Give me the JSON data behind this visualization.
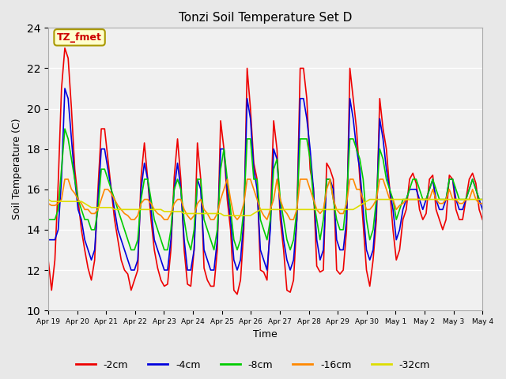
{
  "title": "Tonzi Soil Temperature Set D",
  "xlabel": "Time",
  "ylabel": "Soil Temperature (C)",
  "ylim": [
    10,
    24
  ],
  "yticks": [
    10,
    12,
    14,
    16,
    18,
    20,
    22,
    24
  ],
  "annotation_text": "TZ_fmet",
  "annotation_color": "#cc0000",
  "annotation_bg": "#ffffcc",
  "annotation_border": "#aa9900",
  "series_colors": {
    "-2cm": "#ee0000",
    "-4cm": "#0000dd",
    "-8cm": "#00cc00",
    "-16cm": "#ff8800",
    "-32cm": "#dddd00"
  },
  "x_tick_labels": [
    "Apr 19",
    "Apr 20",
    "Apr 21",
    "Apr 22",
    "Apr 23",
    "Apr 24",
    "Apr 25",
    "Apr 26",
    "Apr 27",
    "Apr 28",
    "Apr 29",
    "Apr 30",
    "May 1",
    "May 2",
    "May 3",
    "May 4"
  ],
  "bg_color": "#e8e8e8",
  "plot_bg": "#f0f0f0",
  "linewidth": 1.2,
  "t_2cm": [
    12.5,
    11.0,
    12.5,
    16.3,
    21.0,
    23.0,
    22.5,
    20.0,
    17.0,
    15.5,
    14.0,
    13.0,
    12.1,
    11.5,
    12.5,
    16.0,
    19.0,
    19.0,
    17.5,
    16.0,
    14.5,
    13.5,
    12.5,
    12.0,
    11.8,
    11.0,
    11.5,
    12.0,
    16.6,
    18.3,
    16.5,
    14.5,
    13.0,
    12.1,
    11.5,
    11.2,
    11.3,
    13.0,
    16.6,
    18.5,
    16.5,
    13.0,
    11.3,
    11.2,
    13.0,
    18.3,
    16.5,
    12.1,
    11.5,
    11.2,
    11.2,
    13.0,
    19.4,
    18.0,
    15.5,
    14.0,
    11.0,
    10.8,
    11.5,
    14.0,
    22.0,
    20.0,
    17.3,
    16.5,
    12.0,
    11.9,
    11.5,
    14.5,
    19.4,
    18.0,
    14.5,
    13.0,
    11.0,
    10.9,
    11.5,
    14.5,
    22.0,
    22.0,
    20.5,
    17.0,
    16.1,
    12.2,
    11.9,
    12.0,
    17.3,
    17.0,
    16.5,
    12.0,
    11.8,
    12.0,
    14.0,
    22.0,
    20.5,
    19.0,
    16.5,
    14.3,
    12.0,
    11.2,
    12.5,
    14.5,
    20.5,
    19.0,
    18.0,
    16.0,
    14.0,
    12.5,
    13.0,
    14.5,
    15.0,
    16.5,
    16.8,
    16.3,
    15.0,
    14.5,
    14.8,
    16.5,
    16.7,
    15.0,
    14.5,
    14.0,
    14.5,
    16.7,
    16.5,
    15.0,
    14.5,
    14.5,
    15.5,
    16.5,
    16.8,
    16.3,
    15.0,
    14.5
  ],
  "t_4cm": [
    13.5,
    13.5,
    13.5,
    14.0,
    16.5,
    21.0,
    20.5,
    18.5,
    16.5,
    15.0,
    14.5,
    13.5,
    13.0,
    12.5,
    13.0,
    15.5,
    18.0,
    18.0,
    17.0,
    16.0,
    15.0,
    14.0,
    13.5,
    13.0,
    12.5,
    12.0,
    12.0,
    12.5,
    16.0,
    17.3,
    16.5,
    15.0,
    13.5,
    13.0,
    12.5,
    12.0,
    12.0,
    13.5,
    16.0,
    17.3,
    16.0,
    13.5,
    12.0,
    12.0,
    13.0,
    16.5,
    16.0,
    13.0,
    12.5,
    12.0,
    12.0,
    13.5,
    18.0,
    18.0,
    16.0,
    14.5,
    12.5,
    12.0,
    12.5,
    14.5,
    20.5,
    19.5,
    17.0,
    16.0,
    13.0,
    12.5,
    12.0,
    14.0,
    18.0,
    17.5,
    15.0,
    13.5,
    12.5,
    12.0,
    12.5,
    14.5,
    20.5,
    20.5,
    19.5,
    18.0,
    16.0,
    13.5,
    12.5,
    13.0,
    16.5,
    16.5,
    16.0,
    13.5,
    13.0,
    13.0,
    14.5,
    20.5,
    19.5,
    18.0,
    17.0,
    15.0,
    13.0,
    12.5,
    13.0,
    15.0,
    19.5,
    18.5,
    17.0,
    16.0,
    15.0,
    13.5,
    14.0,
    15.0,
    15.5,
    16.0,
    16.0,
    16.0,
    15.5,
    15.0,
    15.5,
    16.0,
    16.5,
    15.5,
    15.0,
    15.0,
    15.5,
    16.5,
    16.5,
    15.5,
    15.0,
    15.0,
    15.5,
    16.0,
    16.5,
    16.0,
    15.5,
    15.0
  ],
  "t_8cm": [
    14.5,
    14.5,
    14.5,
    15.0,
    17.0,
    19.0,
    18.5,
    17.5,
    16.5,
    15.5,
    15.0,
    14.5,
    14.5,
    14.0,
    14.0,
    15.0,
    17.0,
    17.0,
    16.5,
    16.0,
    15.5,
    15.0,
    14.5,
    14.0,
    13.5,
    13.0,
    13.0,
    13.5,
    15.5,
    16.5,
    16.5,
    15.5,
    14.5,
    14.0,
    13.5,
    13.0,
    13.0,
    14.0,
    16.0,
    16.5,
    16.0,
    14.5,
    13.5,
    13.0,
    14.0,
    16.5,
    16.5,
    14.5,
    14.0,
    13.5,
    13.0,
    14.0,
    17.0,
    18.0,
    16.5,
    15.0,
    13.5,
    13.0,
    13.5,
    15.0,
    18.5,
    18.5,
    16.5,
    16.5,
    14.5,
    14.0,
    13.5,
    14.5,
    17.0,
    17.5,
    15.5,
    14.5,
    13.5,
    13.0,
    13.5,
    15.0,
    18.5,
    18.5,
    18.5,
    17.5,
    15.5,
    14.5,
    13.5,
    14.5,
    16.5,
    16.5,
    15.5,
    14.5,
    14.0,
    14.0,
    15.5,
    18.5,
    18.5,
    18.0,
    17.5,
    16.5,
    14.5,
    13.5,
    14.0,
    15.5,
    18.0,
    17.5,
    16.5,
    16.0,
    15.5,
    14.5,
    15.0,
    15.5,
    15.5,
    16.0,
    16.5,
    16.5,
    16.0,
    15.5,
    15.5,
    16.0,
    16.5,
    16.0,
    15.5,
    15.5,
    15.5,
    16.5,
    16.5,
    16.0,
    15.5,
    15.5,
    15.5,
    16.0,
    16.5,
    16.0,
    15.5,
    15.5
  ],
  "t_16cm": [
    15.3,
    15.2,
    15.2,
    15.3,
    15.5,
    16.5,
    16.5,
    16.0,
    15.8,
    15.5,
    15.3,
    15.0,
    15.0,
    14.8,
    14.8,
    15.0,
    15.5,
    16.0,
    16.0,
    15.8,
    15.5,
    15.2,
    15.0,
    14.8,
    14.7,
    14.5,
    14.5,
    14.7,
    15.3,
    15.5,
    15.5,
    15.3,
    15.0,
    14.8,
    14.7,
    14.5,
    14.5,
    14.8,
    15.3,
    15.5,
    15.5,
    15.0,
    14.7,
    14.5,
    14.7,
    15.3,
    15.5,
    15.0,
    14.8,
    14.5,
    14.5,
    14.8,
    15.5,
    16.0,
    16.5,
    15.5,
    14.7,
    14.5,
    14.7,
    15.3,
    16.5,
    16.5,
    16.0,
    15.5,
    15.0,
    14.7,
    14.5,
    15.0,
    15.5,
    16.5,
    15.5,
    15.0,
    14.8,
    14.5,
    14.5,
    15.0,
    16.5,
    16.5,
    16.5,
    16.0,
    15.5,
    15.0,
    14.8,
    15.0,
    16.0,
    16.5,
    15.5,
    15.0,
    14.8,
    14.8,
    15.3,
    16.5,
    16.5,
    16.0,
    16.0,
    15.5,
    15.0,
    15.0,
    15.2,
    15.5,
    16.5,
    16.5,
    16.0,
    15.5,
    15.5,
    15.0,
    15.2,
    15.3,
    15.5,
    15.5,
    15.5,
    15.5,
    15.5,
    15.5,
    15.5,
    15.5,
    16.0,
    15.5,
    15.3,
    15.3,
    15.5,
    16.0,
    15.5,
    15.5,
    15.3,
    15.3,
    15.5,
    15.5,
    16.0,
    15.5,
    15.3,
    15.3
  ],
  "t_32cm": [
    15.5,
    15.4,
    15.4,
    15.4,
    15.4,
    15.4,
    15.4,
    15.4,
    15.4,
    15.4,
    15.4,
    15.3,
    15.2,
    15.1,
    15.1,
    15.1,
    15.1,
    15.1,
    15.1,
    15.1,
    15.0,
    15.0,
    15.0,
    15.0,
    15.0,
    15.0,
    15.0,
    15.0,
    15.0,
    15.0,
    15.0,
    15.0,
    15.0,
    15.0,
    15.0,
    14.9,
    14.9,
    14.9,
    14.9,
    14.9,
    14.9,
    14.8,
    14.8,
    14.8,
    14.8,
    14.8,
    14.8,
    14.8,
    14.8,
    14.8,
    14.8,
    14.8,
    14.8,
    14.7,
    14.7,
    14.7,
    14.7,
    14.7,
    14.7,
    14.7,
    14.7,
    14.7,
    14.8,
    14.9,
    15.0,
    15.0,
    15.0,
    15.0,
    15.0,
    15.0,
    15.0,
    15.0,
    15.0,
    15.0,
    15.0,
    15.0,
    15.0,
    15.0,
    15.0,
    15.0,
    15.0,
    15.0,
    15.0,
    15.0,
    15.0,
    15.0,
    15.0,
    15.0,
    15.0,
    15.0,
    15.0,
    15.0,
    15.0,
    15.1,
    15.2,
    15.3,
    15.4,
    15.5,
    15.5,
    15.5,
    15.5,
    15.5,
    15.5,
    15.5,
    15.5,
    15.5,
    15.5,
    15.5,
    15.5,
    15.5,
    15.5,
    15.5,
    15.5,
    15.5,
    15.5,
    15.5,
    15.5,
    15.5,
    15.5,
    15.5,
    15.5,
    15.5,
    15.5,
    15.5,
    15.5,
    15.5,
    15.5,
    15.5,
    15.5,
    15.5,
    15.5,
    15.5
  ]
}
